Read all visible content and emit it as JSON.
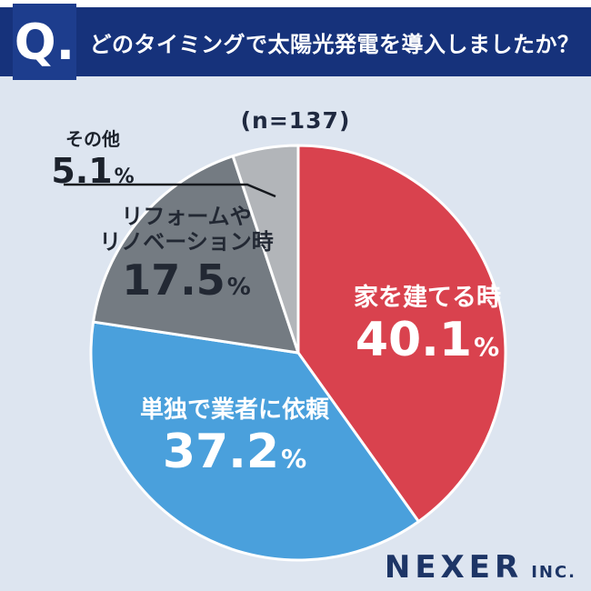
{
  "header": {
    "q_label": "Q.",
    "title": "どのタイミングで太陽光発電を導入しましたか？"
  },
  "sample_label": "(n=137)",
  "percent_sign": "%",
  "colors": {
    "header_band": "#16327b",
    "q_tile": "#1d3d8d",
    "chart_background": "#dde5f0",
    "brand_navy": "#1d3566",
    "slice_outline": "#ffffff"
  },
  "chart_data": {
    "type": "pie",
    "title": "どのタイミングで太陽光発電を導入しましたか？",
    "sample_label": "(n=137)",
    "direction": "clockwise",
    "start_angle_deg": 0,
    "legend_position": "none",
    "slices": [
      {
        "label": "家を建てる時",
        "value": 40.1,
        "color": "#d9424e",
        "text_color": "#ffffff"
      },
      {
        "label": "単独で業者に依頼",
        "value": 37.2,
        "color": "#4aa0dc",
        "text_color": "#ffffff"
      },
      {
        "label": "リフォームやリノベーション時",
        "value": 17.5,
        "color": "#747b82",
        "text_color": "#222833"
      },
      {
        "label": "その他",
        "value": 5.1,
        "color": "#b2b5b9",
        "text_color": "#1c222c"
      }
    ]
  },
  "annotations": {
    "house": {
      "name": "家を建てる時",
      "value": "40.1"
    },
    "contractor": {
      "name": "単独で業者に依頼",
      "value": "37.2"
    },
    "renovation": {
      "line1": "リフォームや",
      "line2": "リノベーション時",
      "value": "17.5"
    },
    "other": {
      "name": "その他",
      "value": "5.1"
    }
  },
  "footer": {
    "brand": "NEXER",
    "suffix": "INC."
  }
}
